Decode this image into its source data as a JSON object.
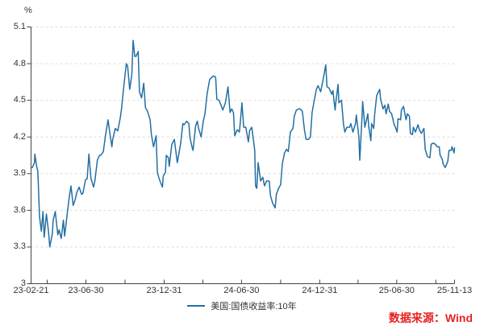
{
  "colors": {
    "line": "#236fa3",
    "axis": "#444444",
    "grid": "#dcdcdc",
    "text": "#333333",
    "source_text": "#e62222"
  },
  "source_note": {
    "text": "数据来源：Wind"
  },
  "chart_data": {
    "type": "line",
    "title": "",
    "grid": "horizontal-dashed",
    "legend_position": "bottom-center",
    "y_axis": {
      "unit": "%",
      "min": 3.0,
      "max": 5.1,
      "ticks": [
        {
          "value": 3.0,
          "label": "3"
        },
        {
          "value": 3.3,
          "label": "3.3"
        },
        {
          "value": 3.6,
          "label": "3.6"
        },
        {
          "value": 3.9,
          "label": "3.9"
        },
        {
          "value": 4.2,
          "label": "4.2"
        },
        {
          "value": 4.5,
          "label": "4.5"
        },
        {
          "value": 4.8,
          "label": "4.8"
        },
        {
          "value": 5.1,
          "label": "5.1"
        }
      ]
    },
    "x_axis": {
      "start": "2023-02-21",
      "end": "2025-11-13",
      "tick_dates": [
        "2023-02-21",
        "2023-03-31",
        "2023-06-30",
        "2023-09-30",
        "2023-12-31",
        "2024-03-31",
        "2024-06-30",
        "2024-09-30",
        "2024-12-31",
        "2025-03-31",
        "2025-06-30",
        "2025-09-30",
        "2025-11-13"
      ],
      "labels": [
        {
          "date": "2023-02-21",
          "text": "23-02-21"
        },
        {
          "date": "2023-06-30",
          "text": "23-06-30"
        },
        {
          "date": "2023-12-31",
          "text": "23-12-31"
        },
        {
          "date": "2024-06-30",
          "text": "24-06-30"
        },
        {
          "date": "2024-12-31",
          "text": "24-12-31"
        },
        {
          "date": "2025-06-30",
          "text": "25-06-30"
        },
        {
          "date": "2025-11-13",
          "text": "25-11-13"
        }
      ]
    },
    "series": [
      {
        "name": "美国:国债收益率:10年",
        "color": "#236fa3",
        "dates": [
          "2023-02-21",
          "2023-02-24",
          "2023-03-01",
          "2023-03-02",
          "2023-03-06",
          "2023-03-09",
          "2023-03-13",
          "2023-03-17",
          "2023-03-21",
          "2023-03-24",
          "2023-03-29",
          "2023-04-03",
          "2023-04-06",
          "2023-04-12",
          "2023-04-14",
          "2023-04-19",
          "2023-04-25",
          "2023-04-28",
          "2023-05-03",
          "2023-05-08",
          "2023-05-11",
          "2023-05-17",
          "2023-05-22",
          "2023-05-26",
          "2023-05-31",
          "2023-06-05",
          "2023-06-09",
          "2023-06-14",
          "2023-06-20",
          "2023-06-23",
          "2023-06-29",
          "2023-07-03",
          "2023-07-07",
          "2023-07-12",
          "2023-07-18",
          "2023-07-21",
          "2023-07-27",
          "2023-08-01",
          "2023-08-04",
          "2023-08-10",
          "2023-08-15",
          "2023-08-21",
          "2023-08-25",
          "2023-08-30",
          "2023-09-01",
          "2023-09-07",
          "2023-09-13",
          "2023-09-19",
          "2023-09-22",
          "2023-09-27",
          "2023-10-03",
          "2023-10-06",
          "2023-10-11",
          "2023-10-16",
          "2023-10-19",
          "2023-10-23",
          "2023-10-26",
          "2023-10-31",
          "2023-11-03",
          "2023-11-08",
          "2023-11-13",
          "2023-11-17",
          "2023-11-22",
          "2023-11-28",
          "2023-12-01",
          "2023-12-06",
          "2023-12-12",
          "2023-12-15",
          "2023-12-20",
          "2023-12-27",
          "2023-12-29",
          "2024-01-03",
          "2024-01-05",
          "2024-01-10",
          "2024-01-12",
          "2024-01-18",
          "2024-01-24",
          "2024-01-31",
          "2024-02-02",
          "2024-02-08",
          "2024-02-13",
          "2024-02-16",
          "2024-02-22",
          "2024-02-27",
          "2024-03-01",
          "2024-03-06",
          "2024-03-08",
          "2024-03-14",
          "2024-03-18",
          "2024-03-21",
          "2024-03-27",
          "2024-04-01",
          "2024-04-05",
          "2024-04-10",
          "2024-04-16",
          "2024-04-25",
          "2024-04-30",
          "2024-05-03",
          "2024-05-08",
          "2024-05-14",
          "2024-05-17",
          "2024-05-23",
          "2024-05-29",
          "2024-06-03",
          "2024-06-07",
          "2024-06-11",
          "2024-06-14",
          "2024-06-20",
          "2024-06-25",
          "2024-06-28",
          "2024-07-01",
          "2024-07-05",
          "2024-07-10",
          "2024-07-16",
          "2024-07-19",
          "2024-07-24",
          "2024-07-31",
          "2024-08-02",
          "2024-08-05",
          "2024-08-08",
          "2024-08-14",
          "2024-08-19",
          "2024-08-23",
          "2024-08-28",
          "2024-09-03",
          "2024-09-06",
          "2024-09-11",
          "2024-09-17",
          "2024-09-20",
          "2024-09-25",
          "2024-09-30",
          "2024-10-04",
          "2024-10-09",
          "2024-10-14",
          "2024-10-18",
          "2024-10-23",
          "2024-10-29",
          "2024-11-01",
          "2024-11-06",
          "2024-11-12",
          "2024-11-15",
          "2024-11-20",
          "2024-11-25",
          "2024-11-29",
          "2024-12-04",
          "2024-12-09",
          "2024-12-13",
          "2024-12-18",
          "2024-12-23",
          "2024-12-27",
          "2025-01-02",
          "2025-01-08",
          "2025-01-14",
          "2025-01-17",
          "2025-01-22",
          "2025-01-28",
          "2025-01-31",
          "2025-02-05",
          "2025-02-07",
          "2025-02-12",
          "2025-02-14",
          "2025-02-20",
          "2025-02-25",
          "2025-02-28",
          "2025-03-05",
          "2025-03-11",
          "2025-03-14",
          "2025-03-19",
          "2025-03-25",
          "2025-03-27",
          "2025-04-02",
          "2025-04-04",
          "2025-04-09",
          "2025-04-11",
          "2025-04-16",
          "2025-04-23",
          "2025-04-25",
          "2025-04-30",
          "2025-05-02",
          "2025-05-07",
          "2025-05-09",
          "2025-05-14",
          "2025-05-21",
          "2025-05-23",
          "2025-05-29",
          "2025-06-02",
          "2025-06-05",
          "2025-06-10",
          "2025-06-13",
          "2025-06-18",
          "2025-06-24",
          "2025-06-27",
          "2025-07-01",
          "2025-07-03",
          "2025-07-09",
          "2025-07-11",
          "2025-07-16",
          "2025-07-22",
          "2025-07-25",
          "2025-07-30",
          "2025-08-01",
          "2025-08-06",
          "2025-08-08",
          "2025-08-13",
          "2025-08-19",
          "2025-08-22",
          "2025-08-27",
          "2025-09-02",
          "2025-09-05",
          "2025-09-10",
          "2025-09-16",
          "2025-09-19",
          "2025-09-24",
          "2025-09-29",
          "2025-10-03",
          "2025-10-08",
          "2025-10-10",
          "2025-10-15",
          "2025-10-17",
          "2025-10-22",
          "2025-10-28",
          "2025-10-31",
          "2025-11-05",
          "2025-11-07",
          "2025-11-12",
          "2025-11-13"
        ],
        "values": [
          3.95,
          3.95,
          3.99,
          4.06,
          3.96,
          3.92,
          3.55,
          3.43,
          3.59,
          3.38,
          3.57,
          3.43,
          3.3,
          3.41,
          3.52,
          3.59,
          3.4,
          3.44,
          3.37,
          3.52,
          3.39,
          3.57,
          3.71,
          3.8,
          3.64,
          3.69,
          3.75,
          3.79,
          3.73,
          3.74,
          3.85,
          3.86,
          4.06,
          3.86,
          3.79,
          3.84,
          4.01,
          4.05,
          4.05,
          4.08,
          4.21,
          4.34,
          4.24,
          4.12,
          4.18,
          4.27,
          4.25,
          4.36,
          4.44,
          4.61,
          4.8,
          4.78,
          4.59,
          4.71,
          4.99,
          4.86,
          4.86,
          4.9,
          4.57,
          4.52,
          4.64,
          4.44,
          4.41,
          4.34,
          4.22,
          4.12,
          4.21,
          3.91,
          3.85,
          3.79,
          3.88,
          3.91,
          4.05,
          4.03,
          3.96,
          4.14,
          4.18,
          3.99,
          4.03,
          4.15,
          4.31,
          4.3,
          4.33,
          4.31,
          4.19,
          4.11,
          4.09,
          4.29,
          4.33,
          4.27,
          4.2,
          4.33,
          4.39,
          4.55,
          4.67,
          4.7,
          4.69,
          4.51,
          4.5,
          4.45,
          4.42,
          4.48,
          4.61,
          4.4,
          4.43,
          4.4,
          4.21,
          4.26,
          4.24,
          4.36,
          4.48,
          4.28,
          4.28,
          4.16,
          4.25,
          4.28,
          4.09,
          3.8,
          3.78,
          3.99,
          3.84,
          3.87,
          3.8,
          3.84,
          3.84,
          3.72,
          3.66,
          3.62,
          3.73,
          3.78,
          3.81,
          3.98,
          4.07,
          4.1,
          4.08,
          4.24,
          4.27,
          4.37,
          4.42,
          4.43,
          4.43,
          4.41,
          4.26,
          4.18,
          4.18,
          4.2,
          4.4,
          4.5,
          4.59,
          4.62,
          4.57,
          4.67,
          4.79,
          4.61,
          4.6,
          4.55,
          4.58,
          4.42,
          4.49,
          4.63,
          4.48,
          4.5,
          4.3,
          4.24,
          4.28,
          4.28,
          4.31,
          4.24,
          4.31,
          4.38,
          4.2,
          4.01,
          4.34,
          4.49,
          4.28,
          4.39,
          4.29,
          4.17,
          4.31,
          4.27,
          4.38,
          4.54,
          4.59,
          4.51,
          4.43,
          4.46,
          4.39,
          4.47,
          4.41,
          4.39,
          4.3,
          4.28,
          4.24,
          4.35,
          4.34,
          4.42,
          4.45,
          4.34,
          4.39,
          4.37,
          4.23,
          4.22,
          4.28,
          4.24,
          4.3,
          4.26,
          4.23,
          4.27,
          4.1,
          4.04,
          4.03,
          4.14,
          4.15,
          4.14,
          4.12,
          4.12,
          4.05,
          4.02,
          3.98,
          3.95,
          4.0,
          4.09,
          4.09,
          4.12,
          4.07,
          4.11
        ]
      }
    ]
  }
}
